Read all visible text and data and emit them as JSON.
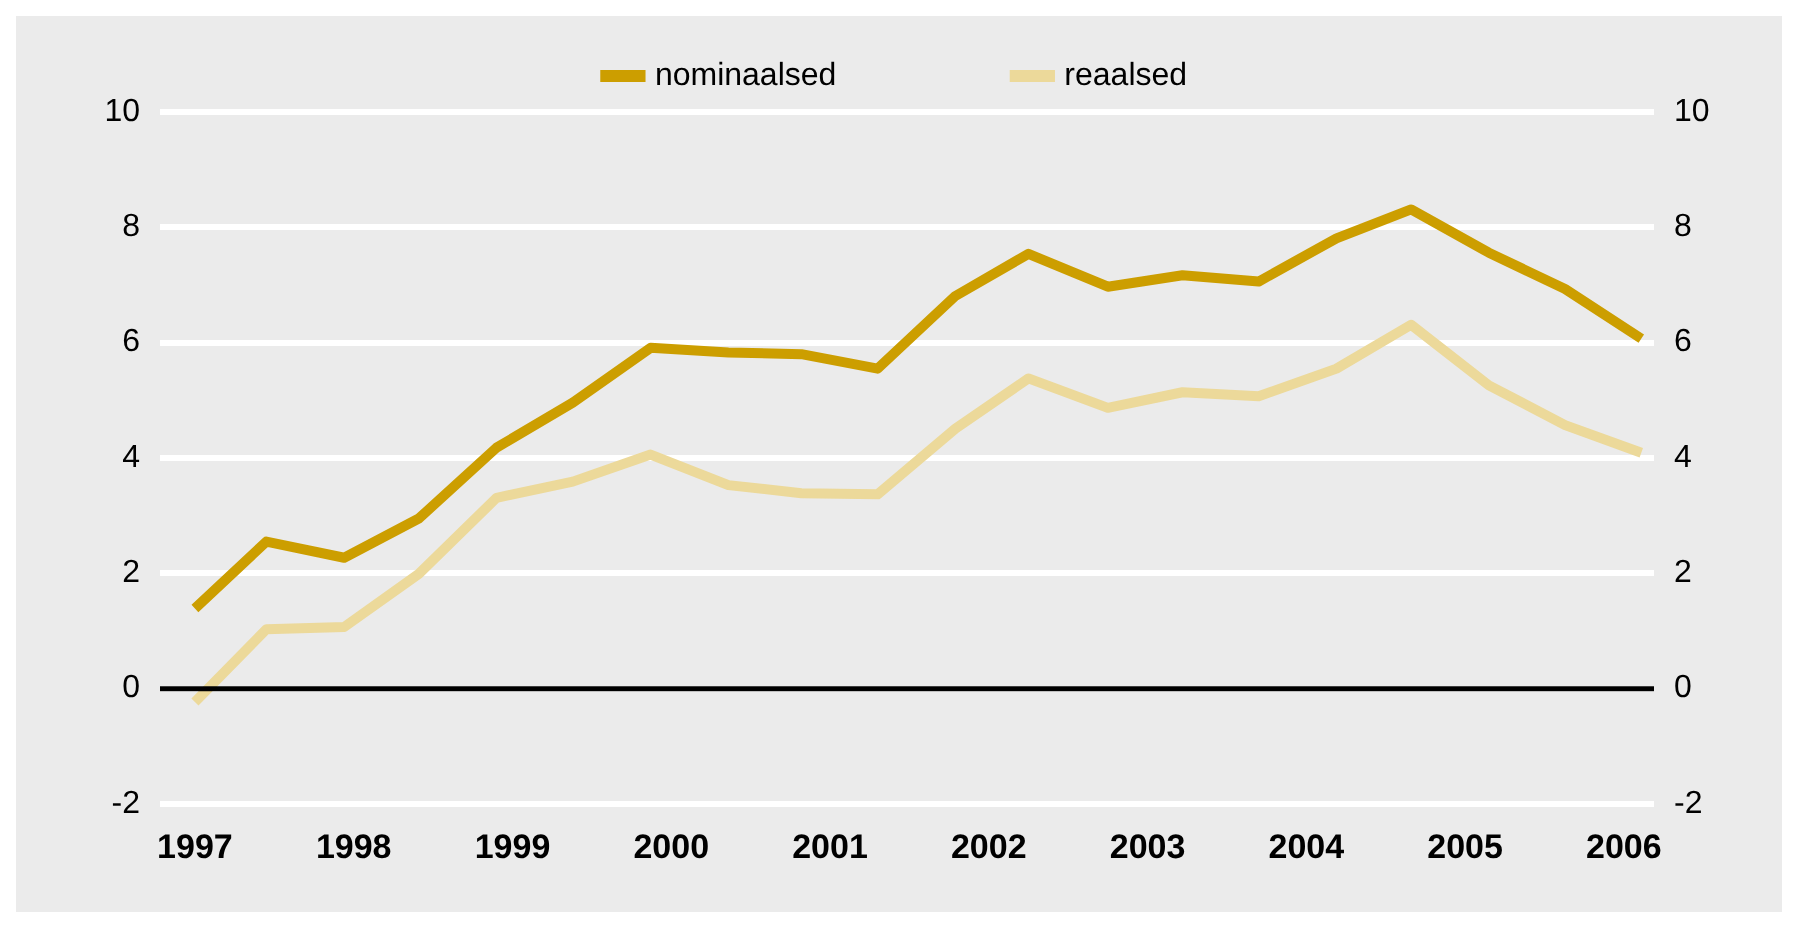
{
  "chart_data": {
    "type": "line",
    "x": [
      1997.0,
      1997.45,
      1997.94,
      1998.41,
      1998.9,
      1999.38,
      1999.87,
      2000.36,
      2000.82,
      2001.3,
      2001.79,
      2002.25,
      2002.75,
      2003.22,
      2003.7,
      2004.19,
      2004.66,
      2005.15,
      2005.63,
      2006.11
    ],
    "xlim": [
      1996.78,
      2006.19
    ],
    "xticks": [
      1997,
      1998,
      1999,
      2000,
      2001,
      2002,
      2003,
      2004,
      2005,
      2006
    ],
    "ylim": [
      -2,
      10
    ],
    "yticks": [
      -2,
      0,
      2,
      4,
      6,
      8,
      10
    ],
    "y2lim": [
      -2,
      10
    ],
    "y2ticks": [
      -2,
      0,
      2,
      4,
      6,
      8,
      10
    ],
    "series": [
      {
        "name": "nominaalsed",
        "color": "#cc9e00",
        "values": [
          1.39,
          2.55,
          2.27,
          2.95,
          4.18,
          4.96,
          5.91,
          5.83,
          5.8,
          5.55,
          6.81,
          7.54,
          6.97,
          7.17,
          7.06,
          7.81,
          8.31,
          7.56,
          6.93,
          6.07
        ]
      },
      {
        "name": "reaalsed",
        "color": "#ecd99a",
        "values": [
          -0.23,
          1.03,
          1.07,
          1.99,
          3.31,
          3.59,
          4.06,
          3.53,
          3.39,
          3.37,
          4.51,
          5.38,
          4.87,
          5.14,
          5.07,
          5.55,
          6.31,
          5.26,
          4.57,
          4.09
        ]
      }
    ],
    "ref_lines": [
      {
        "axis": "y",
        "value": 0,
        "color": "#000000"
      }
    ],
    "grid": "y",
    "legend": "top",
    "marker": "none",
    "line_style": "solid"
  }
}
